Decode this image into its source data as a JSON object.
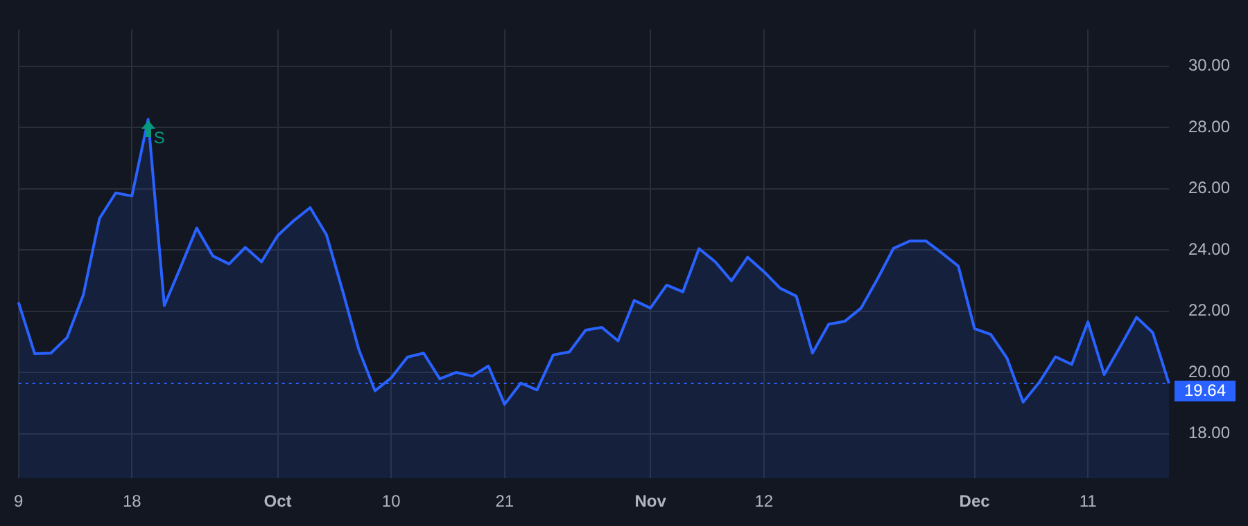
{
  "chart_data": {
    "type": "area",
    "categories": [
      "9",
      null,
      null,
      null,
      null,
      null,
      null,
      "18",
      null,
      null,
      null,
      null,
      null,
      null,
      null,
      null,
      "Oct",
      null,
      null,
      null,
      null,
      null,
      null,
      "10",
      null,
      null,
      null,
      null,
      null,
      null,
      "21",
      null,
      null,
      null,
      null,
      null,
      null,
      null,
      null,
      "Nov",
      null,
      null,
      null,
      null,
      null,
      null,
      "12",
      null,
      null,
      null,
      null,
      null,
      null,
      null,
      null,
      null,
      null,
      null,
      null,
      "Dec",
      null,
      null,
      null,
      null,
      null,
      null,
      "11",
      null,
      null,
      null,
      null,
      null
    ],
    "series": [
      {
        "color": "#2962ff",
        "values": [
          22.29,
          20.61,
          20.63,
          21.14,
          22.53,
          25.03,
          25.86,
          25.76,
          28.26,
          22.18,
          23.43,
          24.71,
          23.8,
          23.54,
          24.08,
          23.61,
          24.47,
          24.96,
          25.38,
          24.5,
          22.67,
          20.75,
          19.4,
          19.82,
          20.5,
          20.63,
          19.79,
          20.0,
          19.88,
          20.21,
          18.96,
          19.65,
          19.43,
          20.57,
          20.67,
          21.38,
          21.47,
          21.03,
          22.35,
          22.1,
          22.85,
          22.63,
          24.04,
          23.61,
          22.99,
          23.76,
          23.29,
          22.75,
          22.49,
          20.63,
          21.57,
          21.67,
          22.1,
          23.04,
          24.05,
          24.29,
          24.29,
          23.89,
          23.47,
          21.43,
          21.24,
          20.47,
          19.03,
          19.68,
          20.51,
          20.26,
          21.65,
          19.93,
          20.85,
          21.8,
          21.3,
          19.64
        ]
      }
    ],
    "ylim": [
      16.54,
      31.2
    ],
    "yticks": [
      {
        "value": 18,
        "label": "18.00"
      },
      {
        "value": 20,
        "label": "20.00"
      },
      {
        "value": 22,
        "label": "22.00"
      },
      {
        "value": 24,
        "label": "24.00"
      },
      {
        "value": 26,
        "label": "26.00"
      },
      {
        "value": 28,
        "label": "28.00"
      },
      {
        "value": 30,
        "label": "30.00"
      }
    ],
    "ref_lines": [
      {
        "axis": "y",
        "value": 19.64,
        "label": "19.64",
        "color": "#2962ff",
        "line_style": "dotted"
      }
    ],
    "annotations": [
      "S"
    ],
    "grid": true,
    "legend": false,
    "marker": "none"
  }
}
